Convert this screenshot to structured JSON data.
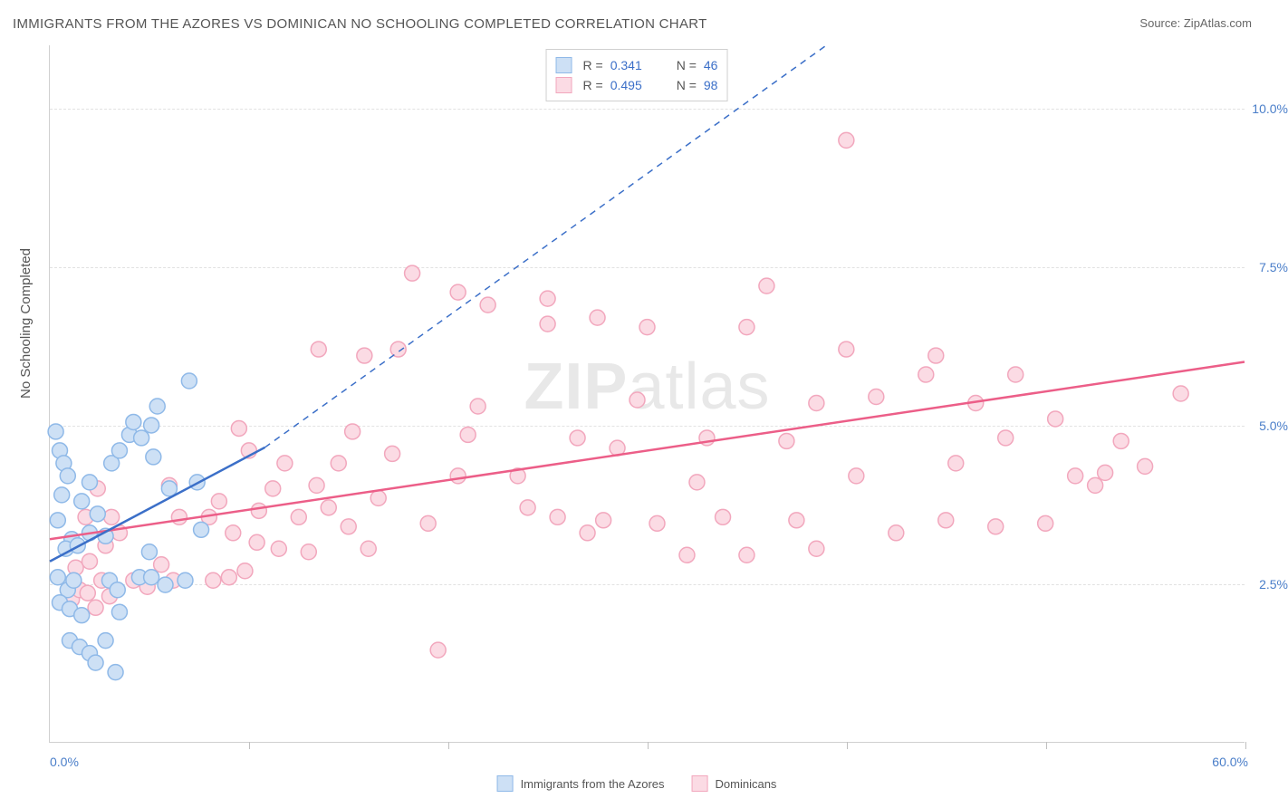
{
  "title": "IMMIGRANTS FROM THE AZORES VS DOMINICAN NO SCHOOLING COMPLETED CORRELATION CHART",
  "source_label": "Source:",
  "source_value": "ZipAtlas.com",
  "watermark_a": "ZIP",
  "watermark_b": "atlas",
  "y_axis_title": "No Schooling Completed",
  "x_min_label": "0.0%",
  "x_max_label": "60.0%",
  "chart": {
    "type": "scatter",
    "xlim": [
      0,
      60
    ],
    "ylim": [
      0,
      11
    ],
    "y_ticks": [
      {
        "v": 2.5,
        "label": "2.5%"
      },
      {
        "v": 5.0,
        "label": "5.0%"
      },
      {
        "v": 7.5,
        "label": "7.5%"
      },
      {
        "v": 10.0,
        "label": "10.0%"
      }
    ],
    "x_tick_positions": [
      0,
      10,
      20,
      30,
      40,
      50,
      60
    ],
    "background_color": "#ffffff",
    "grid_color": "#e2e2e2",
    "marker_radius": 8.5,
    "marker_stroke_width": 1.5,
    "series": [
      {
        "key": "azores",
        "name": "Immigrants from the Azores",
        "fill": "#cde0f5",
        "stroke": "#8fb9e8",
        "r_value": "0.341",
        "n_value": "46",
        "trend": {
          "solid": [
            [
              0,
              2.85
            ],
            [
              10.8,
              4.65
            ]
          ],
          "dashed_to": [
            39,
            11
          ],
          "color": "#3b6fc8",
          "width": 2.5
        },
        "points": [
          [
            0.3,
            4.9
          ],
          [
            0.5,
            4.6
          ],
          [
            0.7,
            4.4
          ],
          [
            0.6,
            3.9
          ],
          [
            0.4,
            3.5
          ],
          [
            0.9,
            4.2
          ],
          [
            1.1,
            3.2
          ],
          [
            0.4,
            2.6
          ],
          [
            0.9,
            2.4
          ],
          [
            1.2,
            2.55
          ],
          [
            0.5,
            2.2
          ],
          [
            1.0,
            2.1
          ],
          [
            1.6,
            2.0
          ],
          [
            1.0,
            1.6
          ],
          [
            1.5,
            1.5
          ],
          [
            2.0,
            1.4
          ],
          [
            2.8,
            1.6
          ],
          [
            2.3,
            1.25
          ],
          [
            3.3,
            1.1
          ],
          [
            0.8,
            3.05
          ],
          [
            1.4,
            3.1
          ],
          [
            2.0,
            3.3
          ],
          [
            1.6,
            3.8
          ],
          [
            2.0,
            4.1
          ],
          [
            2.4,
            3.6
          ],
          [
            2.8,
            3.25
          ],
          [
            3.0,
            2.55
          ],
          [
            3.4,
            2.4
          ],
          [
            3.5,
            2.05
          ],
          [
            4.5,
            2.6
          ],
          [
            3.1,
            4.4
          ],
          [
            3.5,
            4.6
          ],
          [
            4.0,
            4.85
          ],
          [
            4.2,
            5.05
          ],
          [
            4.6,
            4.8
          ],
          [
            5.2,
            4.5
          ],
          [
            5.1,
            5.0
          ],
          [
            5.4,
            5.3
          ],
          [
            6.0,
            4.0
          ],
          [
            7.0,
            5.7
          ],
          [
            7.4,
            4.1
          ],
          [
            5.0,
            3.0
          ],
          [
            5.1,
            2.6
          ],
          [
            5.8,
            2.48
          ],
          [
            6.8,
            2.55
          ],
          [
            7.6,
            3.35
          ]
        ]
      },
      {
        "key": "dominicans",
        "name": "Dominicans",
        "fill": "#fbdbe4",
        "stroke": "#f2a7bd",
        "r_value": "0.495",
        "n_value": "98",
        "trend": {
          "solid": [
            [
              0,
              3.2
            ],
            [
              60,
              6.0
            ]
          ],
          "color": "#ec5e88",
          "width": 2.5
        },
        "points": [
          [
            1.1,
            2.25
          ],
          [
            1.5,
            2.4
          ],
          [
            1.9,
            2.35
          ],
          [
            2.3,
            2.12
          ],
          [
            2.6,
            2.55
          ],
          [
            1.3,
            2.75
          ],
          [
            2.0,
            2.85
          ],
          [
            2.8,
            3.1
          ],
          [
            3.5,
            3.3
          ],
          [
            3.1,
            3.55
          ],
          [
            1.8,
            3.55
          ],
          [
            2.4,
            4.0
          ],
          [
            4.2,
            2.55
          ],
          [
            4.9,
            2.45
          ],
          [
            5.6,
            2.8
          ],
          [
            6.2,
            2.55
          ],
          [
            6.5,
            3.55
          ],
          [
            8.2,
            2.55
          ],
          [
            8.0,
            3.55
          ],
          [
            8.5,
            3.8
          ],
          [
            9.2,
            3.3
          ],
          [
            9.0,
            2.6
          ],
          [
            9.8,
            2.7
          ],
          [
            10.5,
            3.65
          ],
          [
            11.2,
            4.0
          ],
          [
            11.8,
            4.4
          ],
          [
            10.0,
            4.6
          ],
          [
            10.4,
            3.15
          ],
          [
            11.5,
            3.05
          ],
          [
            12.5,
            3.55
          ],
          [
            13.4,
            4.05
          ],
          [
            14.0,
            3.7
          ],
          [
            13.0,
            3.0
          ],
          [
            14.5,
            4.4
          ],
          [
            15.2,
            4.9
          ],
          [
            15.0,
            3.4
          ],
          [
            16.0,
            3.05
          ],
          [
            16.5,
            3.85
          ],
          [
            17.2,
            4.55
          ],
          [
            17.5,
            6.2
          ],
          [
            15.8,
            6.1
          ],
          [
            13.5,
            6.2
          ],
          [
            18.2,
            7.4
          ],
          [
            20.5,
            7.1
          ],
          [
            22.0,
            6.9
          ],
          [
            19.0,
            3.45
          ],
          [
            19.5,
            1.45
          ],
          [
            20.5,
            4.2
          ],
          [
            21.0,
            4.85
          ],
          [
            21.5,
            5.3
          ],
          [
            25.0,
            7.0
          ],
          [
            25.0,
            6.6
          ],
          [
            23.5,
            4.2
          ],
          [
            24.0,
            3.7
          ],
          [
            25.5,
            3.55
          ],
          [
            26.5,
            4.8
          ],
          [
            27.0,
            3.3
          ],
          [
            27.8,
            3.5
          ],
          [
            27.5,
            6.7
          ],
          [
            30.0,
            6.55
          ],
          [
            29.5,
            5.4
          ],
          [
            28.5,
            4.64
          ],
          [
            30.5,
            3.45
          ],
          [
            32.0,
            2.95
          ],
          [
            33.0,
            4.8
          ],
          [
            32.5,
            4.1
          ],
          [
            33.8,
            3.55
          ],
          [
            35.0,
            2.95
          ],
          [
            35.0,
            6.55
          ],
          [
            36.0,
            7.2
          ],
          [
            37.0,
            4.75
          ],
          [
            37.5,
            3.5
          ],
          [
            38.5,
            5.35
          ],
          [
            38.5,
            3.05
          ],
          [
            40.5,
            4.2
          ],
          [
            40.0,
            6.2
          ],
          [
            41.5,
            5.45
          ],
          [
            42.5,
            3.3
          ],
          [
            40.0,
            9.5
          ],
          [
            44.5,
            6.1
          ],
          [
            44.0,
            5.8
          ],
          [
            45.0,
            3.5
          ],
          [
            45.5,
            4.4
          ],
          [
            46.5,
            5.35
          ],
          [
            47.5,
            3.4
          ],
          [
            48.0,
            4.8
          ],
          [
            48.5,
            5.8
          ],
          [
            50.5,
            5.1
          ],
          [
            51.5,
            4.2
          ],
          [
            52.5,
            4.05
          ],
          [
            53.8,
            4.75
          ],
          [
            53.0,
            4.25
          ],
          [
            55.0,
            4.35
          ],
          [
            56.8,
            5.5
          ],
          [
            50.0,
            3.45
          ],
          [
            6.0,
            4.05
          ],
          [
            9.5,
            4.95
          ],
          [
            3.0,
            2.3
          ]
        ]
      }
    ]
  },
  "legend_top_labels": {
    "r": "R =",
    "n": "N ="
  }
}
